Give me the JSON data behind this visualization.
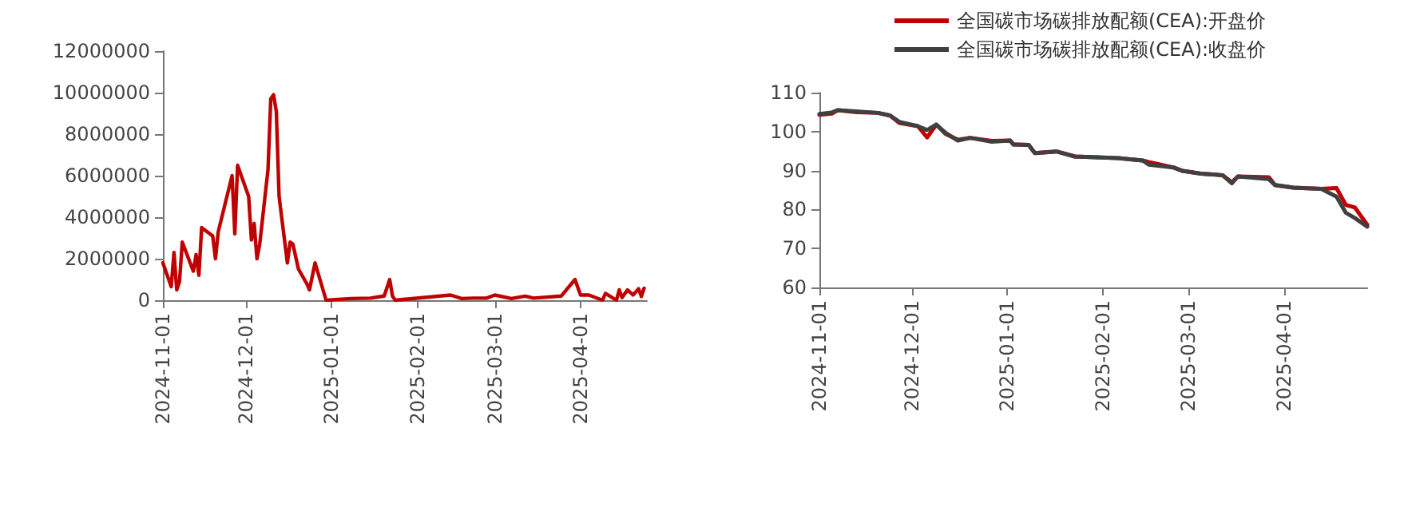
{
  "chart_data": [
    {
      "type": "line",
      "x": [
        "2024-11-01",
        "2024-11-04",
        "2024-11-05",
        "2024-11-06",
        "2024-11-07",
        "2024-11-08",
        "2024-11-12",
        "2024-11-13",
        "2024-11-14",
        "2024-11-15",
        "2024-11-19",
        "2024-11-20",
        "2024-11-21",
        "2024-11-26",
        "2024-11-27",
        "2024-11-28",
        "2024-12-02",
        "2024-12-03",
        "2024-12-04",
        "2024-12-05",
        "2024-12-06",
        "2024-12-09",
        "2024-12-10",
        "2024-12-11",
        "2024-12-12",
        "2024-12-13",
        "2024-12-16",
        "2024-12-17",
        "2024-12-18",
        "2024-12-20",
        "2024-12-23",
        "2024-12-24",
        "2024-12-26",
        "2024-12-30",
        "2025-01-08",
        "2025-01-15",
        "2025-01-20",
        "2025-01-22",
        "2025-01-23",
        "2025-01-24",
        "2025-02-13",
        "2025-02-17",
        "2025-02-21",
        "2025-02-26",
        "2025-03-01",
        "2025-03-07",
        "2025-03-12",
        "2025-03-15",
        "2025-03-25",
        "2025-03-30",
        "2025-04-01",
        "2025-04-04",
        "2025-04-09",
        "2025-04-10",
        "2025-04-14",
        "2025-04-15",
        "2025-04-16",
        "2025-04-18",
        "2025-04-20",
        "2025-04-22",
        "2025-04-23",
        "2025-04-24"
      ],
      "series": [
        {
          "color": "#c00000",
          "values": [
            1800000,
            650000,
            2300000,
            500000,
            900000,
            2800000,
            1400000,
            2200000,
            1200000,
            3500000,
            3100000,
            2000000,
            3300000,
            6000000,
            3200000,
            6500000,
            5000000,
            2900000,
            3700000,
            2000000,
            2700000,
            6300000,
            9700000,
            9900000,
            9100000,
            5000000,
            1800000,
            2800000,
            2700000,
            1500000,
            800000,
            500000,
            1800000,
            0,
            80000,
            100000,
            200000,
            1000000,
            200000,
            0,
            250000,
            80000,
            100000,
            100000,
            250000,
            80000,
            200000,
            100000,
            200000,
            1000000,
            250000,
            250000,
            0,
            330000,
            0,
            500000,
            130000,
            500000,
            250000,
            550000,
            180000,
            580000
          ]
        }
      ],
      "xlim": [
        "2024-11-01",
        "2025-04-25"
      ],
      "xticks": [
        "2024-11-01",
        "2024-12-01",
        "2025-01-01",
        "2025-02-01",
        "2025-03-01",
        "2025-04-01"
      ],
      "ylim": [
        0,
        12000000
      ],
      "yticks": [
        0,
        2000000,
        4000000,
        6000000,
        8000000,
        10000000,
        12000000
      ],
      "grid": false,
      "legend": false,
      "marker": "none",
      "line_style": "solid"
    },
    {
      "type": "line",
      "x": [
        "2024-11-01",
        "2024-11-05",
        "2024-11-07",
        "2024-11-13",
        "2024-11-20",
        "2024-11-24",
        "2024-11-27",
        "2024-12-03",
        "2024-12-06",
        "2024-12-09",
        "2024-12-12",
        "2024-12-16",
        "2024-12-20",
        "2024-12-27",
        "2025-01-02",
        "2025-01-03",
        "2025-01-08",
        "2025-01-10",
        "2025-01-17",
        "2025-01-23",
        "2025-02-06",
        "2025-02-14",
        "2025-02-16",
        "2025-02-24",
        "2025-02-27",
        "2025-03-05",
        "2025-03-12",
        "2025-03-15",
        "2025-03-17",
        "2025-03-27",
        "2025-03-29",
        "2025-04-04",
        "2025-04-13",
        "2025-04-18",
        "2025-04-21",
        "2025-04-24",
        "2025-04-28"
      ],
      "series": [
        {
          "name": "全国碳市场碳排放配额(CEA):开盘价",
          "color": "#c00000",
          "values": [
            104.3,
            104.6,
            105.5,
            105.0,
            104.8,
            104.1,
            102.2,
            101.4,
            98.5,
            101.8,
            99.4,
            97.9,
            98.4,
            97.6,
            97.7,
            96.7,
            96.6,
            94.5,
            94.9,
            93.6,
            93.2,
            92.6,
            92.2,
            90.8,
            89.9,
            89.2,
            88.8,
            87.0,
            88.5,
            88.3,
            86.3,
            85.6,
            85.3,
            85.5,
            81.2,
            80.5,
            76.1
          ]
        },
        {
          "name": "全国碳市场碳排放配额(CEA):收盘价",
          "color": "#404040",
          "values": [
            104.5,
            104.9,
            105.5,
            105.2,
            104.8,
            104.1,
            102.5,
            101.4,
            100.4,
            101.8,
            99.7,
            97.7,
            98.4,
            97.4,
            97.7,
            96.7,
            96.6,
            94.5,
            94.9,
            93.6,
            93.2,
            92.6,
            91.5,
            90.8,
            89.9,
            89.2,
            88.8,
            86.7,
            88.5,
            87.8,
            86.3,
            85.6,
            85.3,
            83.3,
            79.2,
            77.8,
            75.6
          ]
        }
      ],
      "xlim": [
        "2024-11-01",
        "2025-04-28"
      ],
      "xticks": [
        "2024-11-01",
        "2024-12-01",
        "2025-01-01",
        "2025-02-01",
        "2025-03-01",
        "2025-04-01"
      ],
      "ylim": [
        60,
        110
      ],
      "yticks": [
        60,
        70,
        80,
        90,
        100,
        110
      ],
      "grid": false,
      "legend": "top",
      "marker": "none",
      "line_style": "solid"
    }
  ]
}
